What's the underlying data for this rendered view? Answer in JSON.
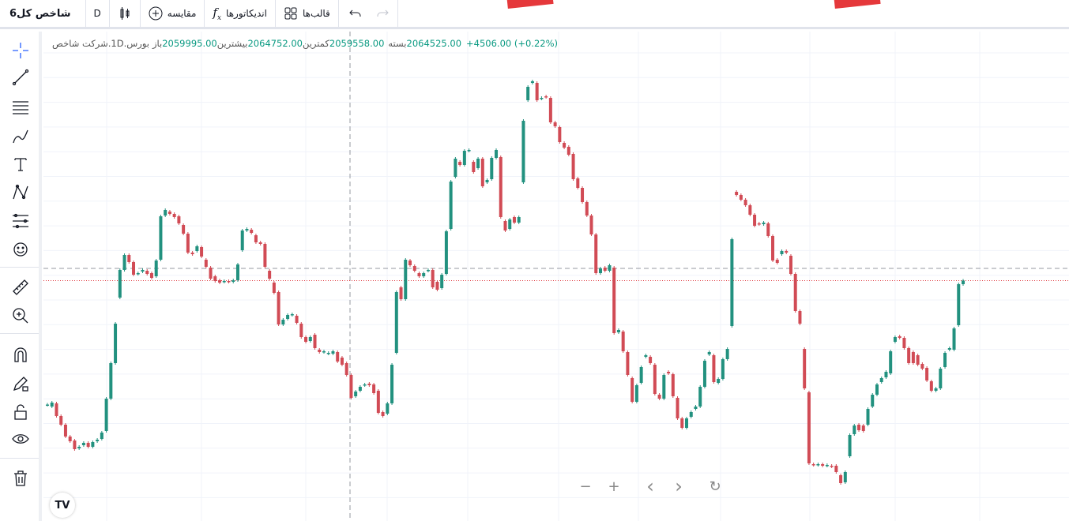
{
  "toolbar": {
    "title": "شاخص کل6",
    "interval": "D",
    "compare_label": "مقایسه",
    "indicators_label": "اندیکاتورها",
    "templates_label": "قالب‌ها"
  },
  "legend": {
    "symbol": "شرکت شاخص",
    "sep": " . ",
    "interval": "1D",
    "exchange": "بورس",
    "open_label": "باز",
    "open": "2059995.00",
    "high_label": "بیشترین",
    "high": "2064752.00",
    "low_label": "کمترین",
    "low": "2059558.00",
    "close_label": "بسته",
    "close": "2064525.00",
    "change": "+4506.00 (+0.22%)"
  },
  "colors": {
    "up": "#22917f",
    "down": "#d14b55",
    "price_line": "#e0383e",
    "crosshair": "#9598a1",
    "grid": "#f0f3fa",
    "value": "#089981"
  },
  "left_tools": [
    "crosshair-icon",
    "trend-line-icon",
    "fib-retracement-icon",
    "brush-icon",
    "text-icon",
    "pattern-icon",
    "prediction-icon",
    "emoji-icon",
    "ruler-icon",
    "zoom-in-icon",
    "magnet-icon",
    "lock-drawing-icon",
    "unlock-icon",
    "eye-icon",
    "trash-icon"
  ],
  "zoom_controls": {
    "zoom_out": "−",
    "zoom_in": "+",
    "scroll_left": "‹",
    "scroll_right": "›",
    "reset": "↻"
  },
  "logo": "TV",
  "chart_data": {
    "type": "candlestick",
    "last_price": 2064525,
    "crosshair_price": 2080000,
    "candles": [
      [
        1907000,
        1907500
      ],
      [
        1905000,
        1910000
      ],
      [
        1909000,
        1893000
      ],
      [
        1893000,
        1882000
      ],
      [
        1882000,
        1867000
      ],
      [
        1867000,
        1861000
      ],
      [
        1862000,
        1851000
      ],
      [
        1852000,
        1854000
      ],
      [
        1856000,
        1859000
      ],
      [
        1859000,
        1854000
      ],
      [
        1854000,
        1860000
      ],
      [
        1861000,
        1863000
      ],
      [
        1864000,
        1872000
      ],
      [
        1874000,
        1915000
      ],
      [
        1915000,
        1960000
      ],
      [
        1960000,
        2010000
      ],
      [
        2043000,
        2078000
      ],
      [
        2078000,
        2097000
      ],
      [
        2097000,
        2088000
      ],
      [
        2088000,
        2072000
      ],
      [
        2073000,
        2074000
      ],
      [
        2076000,
        2078000
      ],
      [
        2077000,
        2073000
      ],
      [
        2074000,
        2068000
      ],
      [
        2070000,
        2090000
      ],
      [
        2091000,
        2146000
      ],
      [
        2147000,
        2154000
      ],
      [
        2152000,
        2149000
      ],
      [
        2149000,
        2145000
      ],
      [
        2146000,
        2137000
      ],
      [
        2135000,
        2124000
      ],
      [
        2124000,
        2100000
      ],
      [
        2100000,
        2098000
      ],
      [
        2102000,
        2108000
      ],
      [
        2107000,
        2095000
      ],
      [
        2091000,
        2082000
      ],
      [
        2081000,
        2067000
      ],
      [
        2070000,
        2064000
      ],
      [
        2065000,
        2062000
      ],
      [
        2063000,
        2064000
      ],
      [
        2064000,
        2063000
      ],
      [
        2063000,
        2065000
      ],
      [
        2065000,
        2085000
      ],
      [
        2103000,
        2128000
      ],
      [
        2128000,
        2130000
      ],
      [
        2129000,
        2125000
      ],
      [
        2122000,
        2113000
      ],
      [
        2113000,
        2111000
      ],
      [
        2111000,
        2082000
      ],
      [
        2077000,
        2067000
      ],
      [
        2062000,
        2049000
      ],
      [
        2050000,
        2009000
      ],
      [
        2009000,
        2015000
      ],
      [
        2016000,
        2021000
      ],
      [
        2021000,
        2022000
      ],
      [
        2020000,
        2011000
      ],
      [
        2010000,
        1993000
      ],
      [
        1993000,
        1987000
      ],
      [
        1988000,
        1993000
      ],
      [
        1996000,
        1979000
      ],
      [
        1977000,
        1974000
      ],
      [
        1974000,
        1975000
      ],
      [
        1972000,
        1973000
      ],
      [
        1972000,
        1975000
      ],
      [
        1974000,
        1962000
      ],
      [
        1967000,
        1958000
      ],
      [
        1960000,
        1945000
      ],
      [
        1945000,
        1916000
      ],
      [
        1918000,
        1924000
      ],
      [
        1925000,
        1930000
      ],
      [
        1932000,
        1933000
      ],
      [
        1934000,
        1932000
      ],
      [
        1933000,
        1922000
      ],
      [
        1925000,
        1897000
      ],
      [
        1898000,
        1893000
      ],
      [
        1896000,
        1909000
      ],
      [
        1909000,
        1958000
      ],
      [
        1973000,
        2050000
      ],
      [
        2056000,
        2041000
      ],
      [
        2041000,
        2091000
      ],
      [
        2090000,
        2084000
      ],
      [
        2083000,
        2077000
      ],
      [
        2074000,
        2070000
      ],
      [
        2070000,
        2074000
      ],
      [
        2077000,
        2078000
      ],
      [
        2078000,
        2056000
      ],
      [
        2063000,
        2053000
      ],
      [
        2055000,
        2072000
      ],
      [
        2073000,
        2127000
      ],
      [
        2130000,
        2190000
      ],
      [
        2196000,
        2219000
      ],
      [
        2215000,
        2211000
      ],
      [
        2211000,
        2229000
      ],
      [
        2229000,
        2230000
      ],
      [
        2215000,
        2202000
      ],
      [
        2207000,
        2219000
      ],
      [
        2219000,
        2184000
      ],
      [
        2189000,
        2192000
      ],
      [
        2193000,
        2220000
      ],
      [
        2220000,
        2230000
      ],
      [
        2221000,
        2145000
      ],
      [
        2140000,
        2128000
      ],
      [
        2130000,
        2142000
      ],
      [
        2145000,
        2138000
      ],
      [
        2138000,
        2145000
      ],
      [
        2189000,
        2267000
      ],
      [
        2293000,
        2310000
      ],
      [
        2315000,
        2317000
      ],
      [
        2315000,
        2293000
      ],
      [
        2295000,
        2296000
      ],
      [
        2298000,
        2297000
      ],
      [
        2296000,
        2265000
      ],
      [
        2265000,
        2260000
      ],
      [
        2259000,
        2240000
      ],
      [
        2239000,
        2233000
      ],
      [
        2234000,
        2224000
      ],
      [
        2225000,
        2193000
      ],
      [
        2194000,
        2182000
      ],
      [
        2182000,
        2164000
      ],
      [
        2164000,
        2147000
      ],
      [
        2147000,
        2123000
      ],
      [
        2123000,
        2074000
      ],
      [
        2074000,
        2080000
      ],
      [
        2081000,
        2077000
      ],
      [
        2077000,
        2084000
      ],
      [
        2081000,
        1998000
      ],
      [
        1999000,
        2002000
      ],
      [
        2000000,
        1975000
      ],
      [
        1974000,
        1945000
      ],
      [
        1941000,
        1911000
      ],
      [
        1911000,
        1932000
      ],
      [
        1935000,
        1955000
      ],
      [
        1968000,
        1970000
      ],
      [
        1968000,
        1960000
      ],
      [
        1958000,
        1921000
      ],
      [
        1920000,
        1915000
      ],
      [
        1915000,
        1945000
      ],
      [
        1949000,
        1947000
      ],
      [
        1946000,
        1918000
      ],
      [
        1916000,
        1890000
      ],
      [
        1890000,
        1878000
      ],
      [
        1878000,
        1890000
      ],
      [
        1892000,
        1898000
      ],
      [
        1902000,
        1905000
      ],
      [
        1905000,
        1930000
      ],
      [
        1930000,
        1963000
      ],
      [
        1971000,
        1974000
      ],
      [
        1970000,
        1936000
      ],
      [
        1935000,
        1940000
      ],
      [
        1940000,
        1965000
      ],
      [
        1965000,
        1978000
      ],
      [
        2007000,
        2117000
      ],
      [
        2177000,
        2173000
      ],
      [
        2173000,
        2167000
      ],
      [
        2167000,
        2160000
      ],
      [
        2160000,
        2148000
      ],
      [
        2148000,
        2134000
      ],
      [
        2137000,
        2136000
      ],
      [
        2136000,
        2138000
      ],
      [
        2137000,
        2121000
      ],
      [
        2121000,
        2090000
      ],
      [
        2091000,
        2087000
      ],
      [
        2098000,
        2102000
      ],
      [
        2102000,
        2100000
      ],
      [
        2096000,
        2073000
      ],
      [
        2073000,
        2026000
      ],
      [
        2026000,
        2010000
      ],
      [
        1978000,
        1928000
      ],
      [
        1923000,
        1833000
      ],
      [
        1832000,
        1831000
      ],
      [
        1831000,
        1832000
      ],
      [
        1832000,
        1830000
      ],
      [
        1830000,
        1831000
      ],
      [
        1830000,
        1829000
      ],
      [
        1830000,
        1822000
      ],
      [
        1818000,
        1808000
      ],
      [
        1809000,
        1822000
      ],
      [
        1842000,
        1869000
      ],
      [
        1870000,
        1881000
      ],
      [
        1882000,
        1875000
      ],
      [
        1881000,
        1874000
      ],
      [
        1882000,
        1902000
      ],
      [
        1905000,
        1920000
      ],
      [
        1920000,
        1933000
      ],
      [
        1936000,
        1941000
      ],
      [
        1942000,
        1949000
      ],
      [
        1947000,
        1975000
      ],
      [
        1987000,
        1993000
      ],
      [
        1994000,
        1992000
      ],
      [
        1992000,
        1979000
      ],
      [
        1979000,
        1960000
      ],
      [
        1974000,
        1960000
      ],
      [
        1970000,
        1958000
      ],
      [
        1959000,
        1953000
      ],
      [
        1954000,
        1938000
      ],
      [
        1937000,
        1925000
      ],
      [
        1925000,
        1928000
      ],
      [
        1928000,
        1953000
      ],
      [
        1955000,
        1973000
      ],
      [
        1977000,
        1979000
      ],
      [
        1977000,
        2004000
      ],
      [
        2008000,
        2060019
      ],
      [
        2059995,
        2064525
      ]
    ],
    "grid": true
  }
}
